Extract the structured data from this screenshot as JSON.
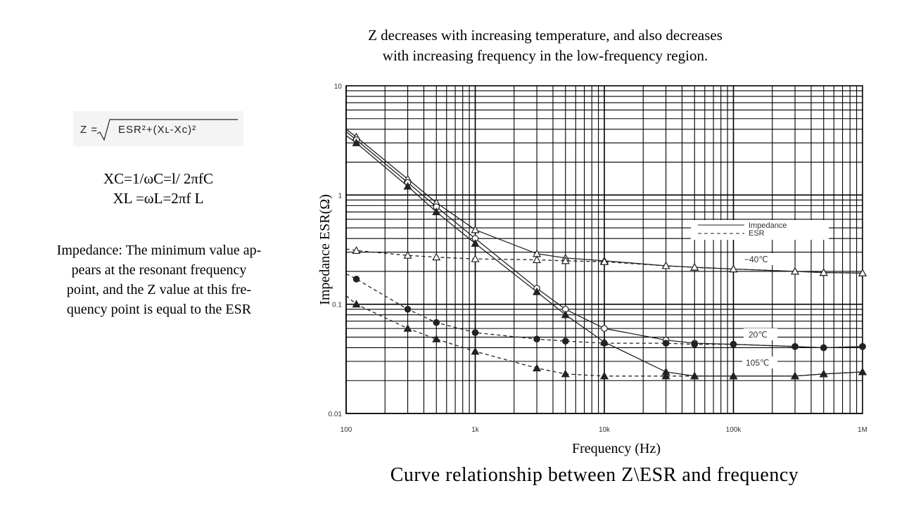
{
  "header": {
    "title_line1": "Z decreases with increasing temperature, and also decreases",
    "title_line2": "with increasing frequency in the low-frequency region."
  },
  "formula": {
    "lhs": "Z =",
    "rhs": "ESR²+(Xʟ-Xc)²"
  },
  "reactance": {
    "xc": "XC=1/ωC=l/ 2πfC",
    "xl": "XL =ωL=2πf L"
  },
  "impedance_note": {
    "line1": "Impedance: The minimum value ap-",
    "line2": "pears at the resonant frequency",
    "line3": "point, and the Z value at this fre-",
    "line4": "quency point is equal to the ESR"
  },
  "caption": "Curve relationship between Z\\ESR and frequency",
  "chart_data": {
    "type": "line",
    "title": "Z decreases with increasing temperature, and also decreases with increasing frequency in the low-frequency region.",
    "xlabel": "Frequency (Hz)",
    "ylabel": "Impedance ESR(Ω)",
    "xscale": "log",
    "yscale": "log",
    "xlim": [
      100,
      1000000
    ],
    "ylim": [
      0.01,
      10
    ],
    "x_ticks": [
      {
        "value": 100,
        "label": "100"
      },
      {
        "value": 1000,
        "label": "1k"
      },
      {
        "value": 10000,
        "label": "10k"
      },
      {
        "value": 100000,
        "label": "100k"
      },
      {
        "value": 1000000,
        "label": "1M"
      }
    ],
    "y_ticks": [
      {
        "value": 10,
        "label": "10"
      },
      {
        "value": 1,
        "label": "1"
      },
      {
        "value": 0.1,
        "label": "0.1"
      },
      {
        "value": 0.01,
        "label": "0.01"
      }
    ],
    "grid": true,
    "legend": {
      "placement": "right",
      "entries": [
        {
          "label": "Impedance",
          "style": "solid"
        },
        {
          "label": "ESR",
          "style": "dashed"
        }
      ]
    },
    "annotations": [
      "−40℃",
      "20℃",
      "105℃"
    ],
    "series": [
      {
        "name": "Impedance -40℃",
        "style": "solid",
        "marker": "triangle-open",
        "x": [
          100,
          120,
          300,
          500,
          1000,
          3000,
          5000,
          10000,
          30000,
          50000,
          100000,
          300000,
          500000,
          1000000
        ],
        "y": [
          4.0,
          3.4,
          1.4,
          0.85,
          0.48,
          0.29,
          0.265,
          0.25,
          0.225,
          0.218,
          0.21,
          0.2,
          0.195,
          0.193
        ]
      },
      {
        "name": "Impedance 20℃",
        "style": "solid",
        "marker": "circle-open",
        "x": [
          100,
          120,
          300,
          500,
          1000,
          3000,
          5000,
          10000,
          30000,
          50000,
          100000,
          300000,
          500000,
          1000000
        ],
        "y": [
          3.8,
          3.2,
          1.3,
          0.78,
          0.4,
          0.14,
          0.09,
          0.06,
          0.047,
          0.044,
          0.043,
          0.041,
          0.04,
          0.041
        ]
      },
      {
        "name": "Impedance 105℃",
        "style": "solid",
        "marker": "triangle-filled",
        "x": [
          100,
          120,
          300,
          500,
          1000,
          3000,
          5000,
          10000,
          30000,
          50000,
          100000,
          300000,
          500000,
          1000000
        ],
        "y": [
          3.5,
          3.0,
          1.2,
          0.7,
          0.36,
          0.13,
          0.08,
          0.045,
          0.024,
          0.022,
          0.022,
          0.022,
          0.023,
          0.024
        ]
      },
      {
        "name": "ESR -40℃",
        "style": "dashed",
        "marker": "triangle-open",
        "x": [
          100,
          120,
          300,
          500,
          1000,
          3000,
          5000,
          10000,
          30000,
          50000,
          100000,
          300000,
          500000,
          1000000
        ],
        "y": [
          0.32,
          0.31,
          0.28,
          0.27,
          0.26,
          0.255,
          0.25,
          0.245,
          0.225,
          0.218,
          0.21,
          0.2,
          0.195,
          0.193
        ]
      },
      {
        "name": "ESR 20℃",
        "style": "dashed",
        "marker": "circle-filled",
        "x": [
          100,
          120,
          300,
          500,
          1000,
          3000,
          5000,
          10000,
          30000,
          50000,
          100000,
          300000,
          500000,
          1000000
        ],
        "y": [
          0.19,
          0.17,
          0.09,
          0.068,
          0.055,
          0.048,
          0.046,
          0.044,
          0.044,
          0.043,
          0.043,
          0.041,
          0.04,
          0.041
        ]
      },
      {
        "name": "ESR 105℃",
        "style": "dashed",
        "marker": "triangle-filled",
        "x": [
          100,
          120,
          300,
          500,
          1000,
          3000,
          5000,
          10000,
          30000,
          50000,
          100000,
          300000,
          500000,
          1000000
        ],
        "y": [
          0.12,
          0.1,
          0.06,
          0.048,
          0.037,
          0.026,
          0.023,
          0.022,
          0.022,
          0.022,
          0.022,
          0.022,
          0.023,
          0.024
        ]
      }
    ]
  }
}
